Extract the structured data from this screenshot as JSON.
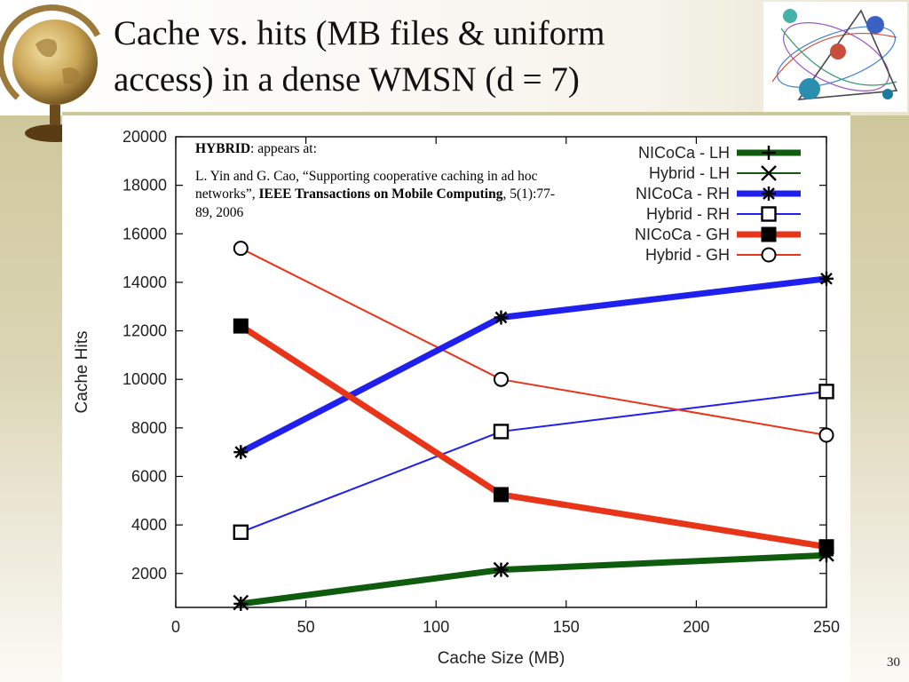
{
  "slide": {
    "title": "Cache vs. hits (MB files & uniform\naccess) in a dense WMSN (d = 7)",
    "page_number": "30"
  },
  "annotation": {
    "heading_bold": "HYBRID",
    "heading_rest": ": appears at:",
    "citation_part1": "L. Yin and G. Cao, “Supporting cooperative caching in ad hoc networks”, ",
    "citation_bold": "IEEE Transactions on Mobile Computing",
    "citation_part2": ", 5(1):77-89, 2006"
  },
  "colors": {
    "green": "#0f5c0f",
    "blue": "#2020ee",
    "red": "#e83418",
    "black": "#000000",
    "band": "#cfc79c"
  },
  "icons": {
    "globe": "globe-icon",
    "network": "network-illustration-icon"
  },
  "chart_data": {
    "type": "line",
    "title": "",
    "xlabel": "Cache Size (MB)",
    "ylabel": "Cache Hits",
    "xlim": [
      0,
      250
    ],
    "ylim": [
      600,
      20000
    ],
    "xticks": [
      0,
      50,
      100,
      150,
      200,
      250
    ],
    "yticks": [
      2000,
      4000,
      6000,
      8000,
      10000,
      12000,
      14000,
      16000,
      18000,
      20000
    ],
    "grid": false,
    "legend_position": "top-right",
    "x": [
      25,
      125,
      250
    ],
    "series": [
      {
        "name": "NICoCa - LH",
        "values": [
          750,
          2150,
          2750
        ],
        "color": "#0f5c0f",
        "line": "thick",
        "marker": "plus"
      },
      {
        "name": "Hybrid - LH",
        "values": [
          800,
          2150,
          2800
        ],
        "color": "#0f5c0f",
        "line": "thin",
        "marker": "x"
      },
      {
        "name": "NICoCa - RH",
        "values": [
          7000,
          12550,
          14150
        ],
        "color": "#2020ee",
        "line": "thick",
        "marker": "asterisk"
      },
      {
        "name": "Hybrid - RH",
        "values": [
          3700,
          7850,
          9500
        ],
        "color": "#2020ee",
        "line": "thin",
        "marker": "open-square"
      },
      {
        "name": "NICoCa - GH",
        "values": [
          12200,
          5250,
          3100
        ],
        "color": "#e83418",
        "line": "thick",
        "marker": "filled-square"
      },
      {
        "name": "Hybrid - GH",
        "values": [
          15400,
          10000,
          7700
        ],
        "color": "#e83418",
        "line": "thin",
        "marker": "open-circle"
      }
    ]
  }
}
